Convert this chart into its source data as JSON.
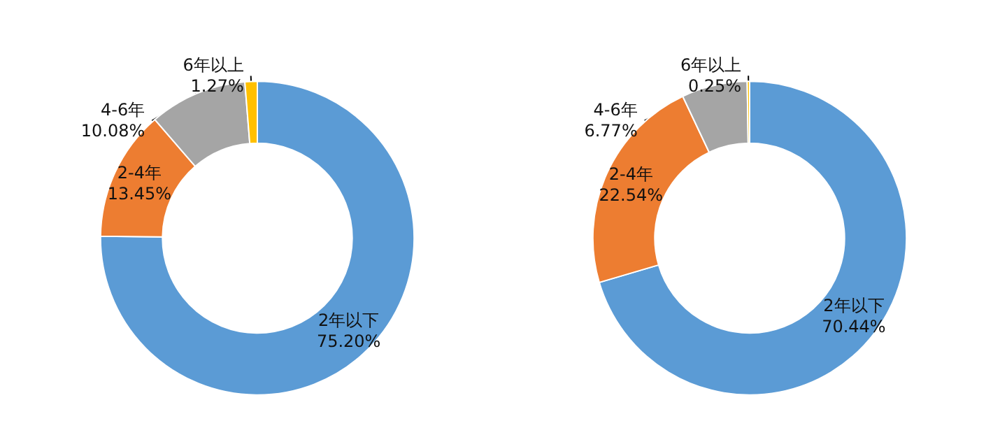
{
  "chart_data": [
    {
      "type": "donut",
      "categories": [
        "2年以下",
        "2-4年",
        "4-6年",
        "6年以上"
      ],
      "values": [
        75.2,
        13.45,
        10.08,
        1.27
      ],
      "value_labels": [
        "75.20%",
        "13.45%",
        "10.08%",
        "1.27%"
      ],
      "colors": [
        "#5b9bd5",
        "#ed7d31",
        "#a5a5a5",
        "#ffc000"
      ],
      "legend": false
    },
    {
      "type": "donut",
      "categories": [
        "2年以下",
        "2-4年",
        "4-6年",
        "6年以上"
      ],
      "values": [
        70.44,
        22.54,
        6.77,
        0.25
      ],
      "value_labels": [
        "70.44%",
        "22.54%",
        "6.77%",
        "0.25%"
      ],
      "colors": [
        "#5b9bd5",
        "#ed7d31",
        "#a5a5a5",
        "#ffc000"
      ],
      "legend": false
    }
  ]
}
